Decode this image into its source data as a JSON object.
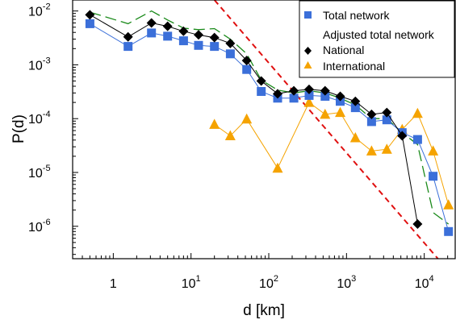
{
  "chart_data": {
    "type": "scatter",
    "title": "",
    "xlabel": "d [km]",
    "ylabel": "P(d)",
    "xscale": "log",
    "yscale": "log",
    "xlim": [
      0.3,
      25000
    ],
    "ylim": [
      2.5e-07,
      0.016
    ],
    "grid": false,
    "legend_position": "top-right",
    "x_ticks": [
      {
        "base": "1",
        "exp": ""
      },
      {
        "base": "10",
        "exp": "1"
      },
      {
        "base": "10",
        "exp": "2"
      },
      {
        "base": "10",
        "exp": "3"
      },
      {
        "base": "10",
        "exp": "4"
      }
    ],
    "y_ticks": [
      {
        "base": "10",
        "exp": "-6"
      },
      {
        "base": "10",
        "exp": "-5"
      },
      {
        "base": "10",
        "exp": "-4"
      },
      {
        "base": "10",
        "exp": "-3"
      },
      {
        "base": "10",
        "exp": "-2"
      }
    ],
    "series": [
      {
        "name": "Total network",
        "marker": "square",
        "color": "#3b6fd9",
        "x": [
          0.5,
          1.55,
          3.1,
          5.0,
          8.0,
          12.5,
          20,
          32,
          52,
          80,
          130,
          210,
          330,
          530,
          830,
          1300,
          2100,
          3300,
          5200,
          8200,
          13000,
          20500
        ],
        "y": [
          0.0058,
          0.0022,
          0.0039,
          0.0034,
          0.0028,
          0.0023,
          0.0022,
          0.0016,
          0.00082,
          0.00032,
          0.00024,
          0.00024,
          0.00027,
          0.00026,
          0.00021,
          0.00016,
          8.8e-05,
          9.5e-05,
          5.5e-05,
          4.1e-05,
          8.5e-06,
          8e-07
        ]
      },
      {
        "name": "Adjusted total network",
        "marker": "none",
        "color": "#1a8a1a",
        "line": "dash",
        "x": [
          0.5,
          1.55,
          3.1,
          5.0,
          8.0,
          12.5,
          20,
          32,
          52,
          80,
          130,
          210,
          330,
          530,
          830,
          1300,
          2100,
          3300,
          5200,
          8200,
          13000,
          20500
        ],
        "y": [
          0.0095,
          0.0058,
          0.01,
          0.0068,
          0.0048,
          0.0045,
          0.0047,
          0.003,
          0.0016,
          0.00052,
          0.00034,
          0.0003,
          0.00033,
          0.0003,
          0.00024,
          0.00018,
          0.0001,
          0.0001,
          5.5e-05,
          3.3e-05,
          1.8e-06,
          1.1e-06
        ]
      },
      {
        "name": "National",
        "marker": "diamond",
        "color": "#000000",
        "x": [
          0.5,
          1.55,
          3.1,
          5.0,
          8.0,
          12.5,
          20,
          32,
          52,
          80,
          130,
          210,
          330,
          530,
          830,
          1300,
          2100,
          3300,
          5200,
          8200
        ],
        "y": [
          0.0085,
          0.0033,
          0.006,
          0.0052,
          0.0042,
          0.0036,
          0.0032,
          0.0025,
          0.0012,
          0.0005,
          0.00029,
          0.00033,
          0.00035,
          0.00033,
          0.00026,
          0.00021,
          0.00012,
          0.00013,
          4.8e-05,
          1.1e-06
        ]
      },
      {
        "name": "International",
        "marker": "triangle",
        "color": "#f5a300",
        "x": [
          20,
          32,
          52,
          130,
          330,
          530,
          830,
          1300,
          2100,
          3300,
          5200,
          8200,
          13000,
          20500
        ],
        "y": [
          7.8e-05,
          4.8e-05,
          9.8e-05,
          1.2e-05,
          0.0002,
          0.00012,
          0.00013,
          4.4e-05,
          2.5e-05,
          2.7e-05,
          6.3e-05,
          0.000125,
          2.5e-05,
          2.5e-06
        ]
      },
      {
        "name": "",
        "marker": "none",
        "color": "#e01010",
        "line": "dash",
        "x": [
          20,
          15000
        ],
        "y": [
          0.016,
          2.5e-07
        ]
      }
    ]
  }
}
